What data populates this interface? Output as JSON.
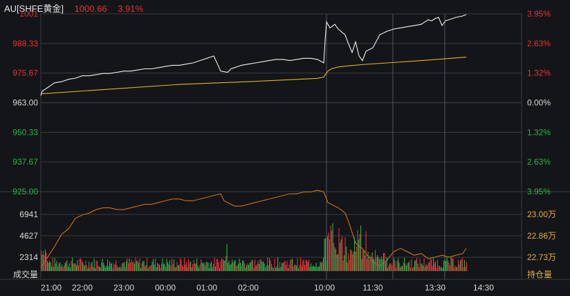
{
  "colors": {
    "background": "#141518",
    "grid": "#3a3c42",
    "price_line": "#f2f2f2",
    "avg_line": "#e6b422",
    "up": "#e8303a",
    "down": "#27b548",
    "neutral": "#d8d8d8",
    "oi_line": "#e07a1e",
    "oi_label": "#e0b040"
  },
  "header": {
    "symbol": "AU[SHFE黄金]",
    "price": "1000.66",
    "change_pct": "3.91%"
  },
  "chart_data": [
    {
      "type": "line",
      "name": "price",
      "ylim": [
        925.0,
        1001.0
      ],
      "base": 963.0,
      "y_ticks_left": [
        "1001",
        "988.33",
        "975.67",
        "963.00",
        "950.33",
        "937.67",
        "925.00"
      ],
      "y_ticks_right": [
        "3.95%",
        "2.63%",
        "1.32%",
        "0.00%",
        "1.32%",
        "2.63%",
        "3.95%"
      ],
      "x_ticks": [
        "21:00",
        "22:00",
        "23:00",
        "00:00",
        "01:00",
        "02:00",
        "10:00",
        "11:30",
        "13:30",
        "14:30"
      ],
      "series": [
        {
          "key": "price",
          "t": [
            0,
            2,
            5,
            10,
            15,
            20,
            30,
            40,
            50,
            60,
            70,
            80,
            90,
            100,
            110,
            120,
            130,
            140,
            150,
            160,
            170,
            180,
            190,
            200,
            210,
            220,
            230,
            240,
            250,
            260,
            270,
            275,
            280,
            290,
            300,
            310,
            320,
            330,
            340,
            350,
            360,
            370,
            380,
            390,
            400,
            409,
            411,
            413,
            418,
            425,
            430,
            440,
            445,
            450,
            455,
            460,
            465,
            470,
            480,
            490,
            500,
            510,
            520,
            530,
            540,
            550,
            555,
            560,
            565,
            570,
            575,
            580,
            585,
            590,
            600,
            609,
            615
          ],
          "v": [
            966.0,
            968.0,
            968.5,
            969.5,
            970.5,
            971.5,
            972.0,
            973.0,
            973.5,
            974.5,
            974.5,
            975.0,
            975.5,
            975.5,
            976.0,
            976.5,
            976.5,
            977.0,
            977.5,
            977.5,
            978.0,
            978.5,
            979.0,
            979.0,
            979.5,
            980.0,
            981.0,
            982.0,
            983.0,
            976.5,
            976.0,
            977.5,
            978.0,
            979.0,
            979.5,
            980.0,
            980.5,
            981.0,
            981.5,
            981.5,
            981.0,
            981.5,
            982.0,
            982.0,
            981.5,
            980.0,
            989.5,
            997.5,
            995.0,
            996.5,
            994.5,
            992.0,
            988.0,
            984.5,
            989.0,
            983.0,
            981.0,
            985.0,
            986.5,
            992.0,
            993.5,
            994.5,
            995.0,
            995.5,
            996.0,
            996.5,
            997.5,
            998.5,
            998.0,
            999.0,
            999.5,
            996.0,
            998.0,
            998.5,
            999.5,
            1000.0,
            1000.66
          ]
        },
        {
          "key": "avg",
          "t": [
            0,
            100,
            200,
            300,
            400,
            409,
            415,
            420,
            430,
            450,
            470,
            500,
            540,
            580,
            615
          ],
          "v": [
            966.8,
            968.8,
            970.8,
            972.0,
            973.4,
            974.0,
            976.5,
            977.5,
            978.3,
            978.9,
            979.4,
            980.0,
            980.8,
            981.7,
            982.5
          ]
        }
      ]
    },
    {
      "type": "bar",
      "name": "volume",
      "y_ticks_left": [
        "6941",
        "4627",
        "2314"
      ],
      "bottom_label_left": "成交量"
    },
    {
      "type": "line",
      "name": "open_interest",
      "y_ticks_right": [
        "23.00万",
        "22.86万",
        "22.73万"
      ],
      "bottom_label_right": "持仓量",
      "t": [
        0,
        10,
        20,
        30,
        40,
        50,
        60,
        70,
        80,
        90,
        100,
        110,
        120,
        130,
        140,
        150,
        160,
        170,
        180,
        190,
        200,
        210,
        220,
        230,
        240,
        250,
        260,
        265,
        270,
        280,
        290,
        300,
        310,
        320,
        330,
        340,
        350,
        360,
        370,
        380,
        390,
        400,
        409,
        412,
        415,
        420,
        430,
        440,
        445,
        450,
        455,
        460,
        465,
        470,
        480,
        490,
        500,
        510,
        520,
        530,
        540,
        550,
        560,
        570,
        580,
        590,
        600,
        610,
        615
      ],
      "v": [
        22.68,
        22.74,
        22.8,
        22.87,
        22.9,
        22.96,
        22.98,
        22.99,
        23.01,
        23.02,
        23.02,
        23.01,
        23.01,
        23.02,
        23.03,
        23.04,
        23.04,
        23.05,
        23.06,
        23.07,
        23.07,
        23.06,
        23.06,
        23.07,
        23.08,
        23.09,
        23.1,
        23.06,
        23.05,
        23.03,
        23.03,
        23.04,
        23.05,
        23.06,
        23.07,
        23.08,
        23.09,
        23.1,
        23.1,
        23.11,
        23.11,
        23.12,
        23.11,
        23.08,
        23.05,
        23.04,
        23.02,
        22.99,
        22.94,
        22.88,
        22.82,
        22.8,
        22.79,
        22.76,
        22.71,
        22.69,
        22.72,
        22.77,
        22.79,
        22.77,
        22.75,
        22.76,
        22.73,
        22.74,
        22.75,
        22.74,
        22.75,
        22.76,
        22.79
      ]
    }
  ]
}
